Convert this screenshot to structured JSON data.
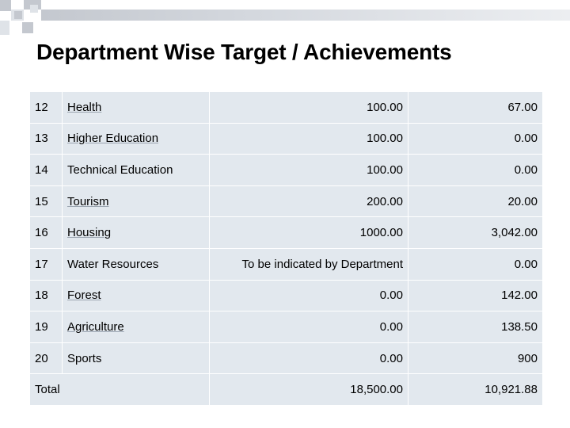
{
  "title": "Department Wise Target / Achievements",
  "rows": [
    {
      "num": "12",
      "dept": "Health",
      "target": "100.00",
      "achievement": "67.00"
    },
    {
      "num": "13",
      "dept": "Higher Education",
      "target": "100.00",
      "achievement": "0.00"
    },
    {
      "num": "14",
      "dept": "Technical Education",
      "target": "100.00",
      "achievement": "0.00"
    },
    {
      "num": "15",
      "dept": "Tourism",
      "target": "200.00",
      "achievement": "20.00"
    },
    {
      "num": "16",
      "dept": "Housing",
      "target": "1000.00",
      "achievement": "3,042.00"
    },
    {
      "num": "17",
      "dept": "Water Resources",
      "target": "To be indicated by Department",
      "achievement": "0.00"
    },
    {
      "num": "18",
      "dept": "Forest",
      "target": "0.00",
      "achievement": "142.00"
    },
    {
      "num": "19",
      "dept": "Agriculture",
      "target": "0.00",
      "achievement": "138.50"
    },
    {
      "num": "20",
      "dept": "Sports",
      "target": "0.00",
      "achievement": "900"
    }
  ],
  "total": {
    "label": "Total",
    "target": "18,500.00",
    "achievement": "10,921.88"
  },
  "colors": {
    "cell_bg": "#e2e8ee",
    "deco_dark": "#c4c8cf",
    "deco_light": "#dfe3e8"
  }
}
